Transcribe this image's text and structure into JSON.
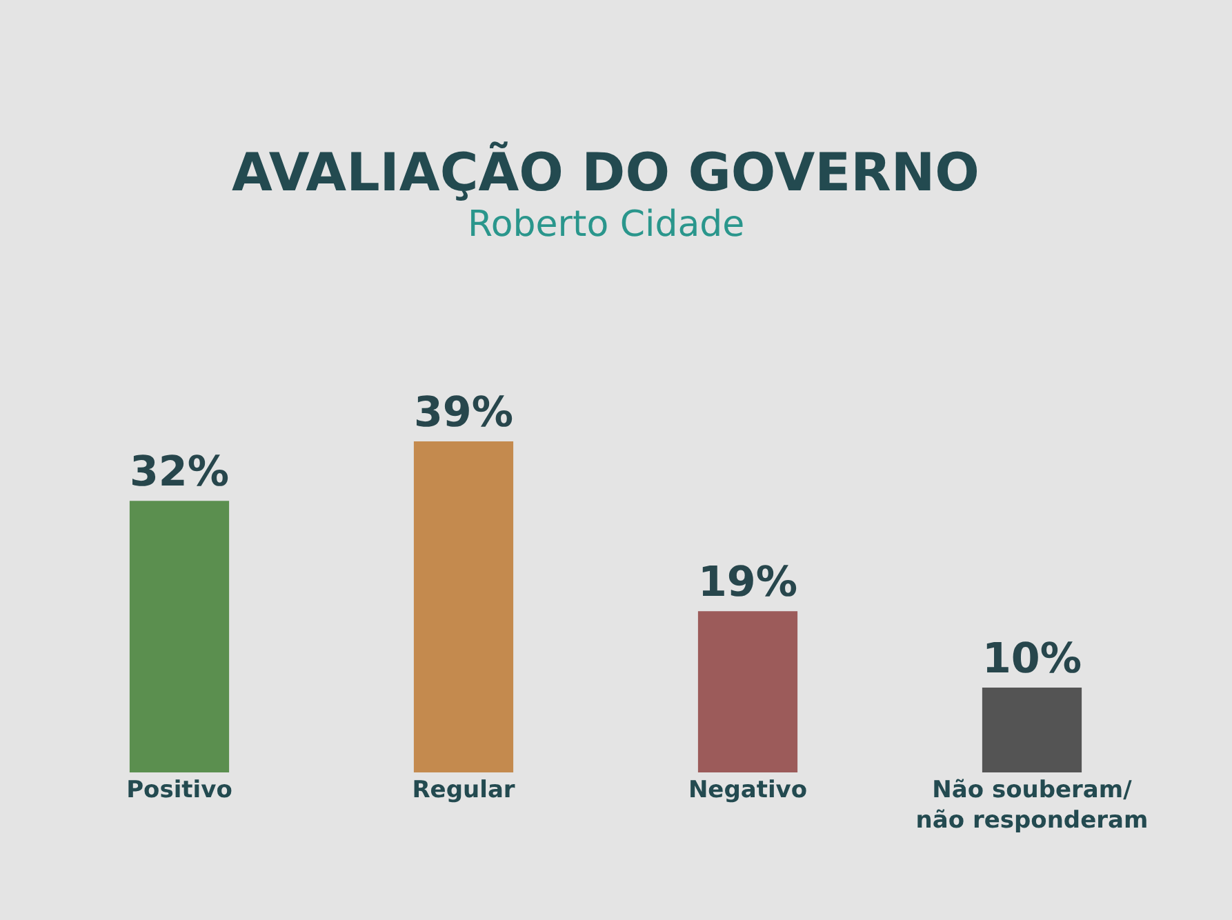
{
  "chart_data": {
    "type": "bar",
    "title": "AVALIAÇÃO DO GOVERNO",
    "subtitle": "Roberto Cidade",
    "categories": [
      "Positivo",
      "Regular",
      "Negativo",
      "Não souberam/\nnão responderam"
    ],
    "values": [
      32,
      39,
      19,
      10
    ],
    "colors": [
      "#5b8f4f",
      "#c48a4e",
      "#9c5b5a",
      "#545454"
    ],
    "value_labels": [
      "32%",
      "39%",
      "19%",
      "10%"
    ],
    "grid": false
  }
}
